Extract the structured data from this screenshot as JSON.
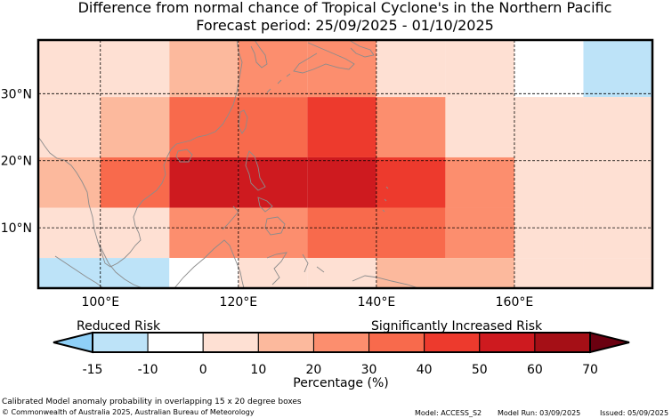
{
  "title": "Difference from normal chance of Tropical Cyclone's in the Northern Pacific",
  "subtitle": "Forecast period: 25/09/2025 - 01/10/2025",
  "map": {
    "lon_range": [
      91,
      180
    ],
    "lat_range": [
      1,
      38
    ],
    "lat_labels": [
      "30°N",
      "20°N",
      "10°N"
    ],
    "lon_labels": [
      "100°E",
      "120°E",
      "140°E",
      "160°E"
    ],
    "lat_ticks": [
      30,
      20,
      10
    ],
    "lon_ticks": [
      100,
      120,
      140,
      160
    ],
    "grid_cells": [
      {
        "lon0": 91,
        "lon1": 100,
        "lat0": 29.5,
        "lat1": 38,
        "pct": 0
      },
      {
        "lon0": 100,
        "lon1": 110,
        "lat0": 29.5,
        "lat1": 38,
        "pct": 5
      },
      {
        "lon0": 110,
        "lon1": 120,
        "lat0": 29.5,
        "lat1": 38,
        "pct": 15
      },
      {
        "lon0": 120,
        "lon1": 130,
        "lat0": 29.5,
        "lat1": 38,
        "pct": 25
      },
      {
        "lon0": 130,
        "lon1": 140,
        "lat0": 29.5,
        "lat1": 38,
        "pct": 25
      },
      {
        "lon0": 140,
        "lon1": 150,
        "lat0": 29.5,
        "lat1": 38,
        "pct": 5
      },
      {
        "lon0": 150,
        "lon1": 160,
        "lat0": 29.5,
        "lat1": 38,
        "pct": 0
      },
      {
        "lon0": 160,
        "lon1": 170,
        "lat0": 29.5,
        "lat1": 38,
        "pct": -5
      },
      {
        "lon0": 170,
        "lon1": 180,
        "lat0": 29.5,
        "lat1": 38,
        "pct": -15
      },
      {
        "lon0": 91,
        "lon1": 100,
        "lat0": 20.5,
        "lat1": 29.5,
        "pct": 5
      },
      {
        "lon0": 100,
        "lon1": 110,
        "lat0": 20.5,
        "lat1": 29.5,
        "pct": 15
      },
      {
        "lon0": 110,
        "lon1": 120,
        "lat0": 20.5,
        "lat1": 29.5,
        "pct": 35
      },
      {
        "lon0": 120,
        "lon1": 130,
        "lat0": 20.5,
        "lat1": 29.5,
        "pct": 35
      },
      {
        "lon0": 130,
        "lon1": 140,
        "lat0": 20.5,
        "lat1": 29.5,
        "pct": 45
      },
      {
        "lon0": 140,
        "lon1": 150,
        "lat0": 20.5,
        "lat1": 29.5,
        "pct": 25
      },
      {
        "lon0": 150,
        "lon1": 160,
        "lat0": 20.5,
        "lat1": 29.5,
        "pct": 5
      },
      {
        "lon0": 160,
        "lon1": 170,
        "lat0": 20.5,
        "lat1": 29.5,
        "pct": 0
      },
      {
        "lon0": 170,
        "lon1": 180,
        "lat0": 20.5,
        "lat1": 29.5,
        "pct": 0
      },
      {
        "lon0": 91,
        "lon1": 100,
        "lat0": 13,
        "lat1": 20.5,
        "pct": 15
      },
      {
        "lon0": 100,
        "lon1": 110,
        "lat0": 13,
        "lat1": 20.5,
        "pct": 35
      },
      {
        "lon0": 110,
        "lon1": 120,
        "lat0": 13,
        "lat1": 20.5,
        "pct": 55
      },
      {
        "lon0": 120,
        "lon1": 130,
        "lat0": 13,
        "lat1": 20.5,
        "pct": 55
      },
      {
        "lon0": 130,
        "lon1": 140,
        "lat0": 13,
        "lat1": 20.5,
        "pct": 55
      },
      {
        "lon0": 140,
        "lon1": 150,
        "lat0": 13,
        "lat1": 20.5,
        "pct": 45
      },
      {
        "lon0": 150,
        "lon1": 160,
        "lat0": 13,
        "lat1": 20.5,
        "pct": 25
      },
      {
        "lon0": 160,
        "lon1": 170,
        "lat0": 13,
        "lat1": 20.5,
        "pct": 5
      },
      {
        "lon0": 170,
        "lon1": 180,
        "lat0": 13,
        "lat1": 20.5,
        "pct": 5
      },
      {
        "lon0": 91,
        "lon1": 100,
        "lat0": 5.5,
        "lat1": 13,
        "pct": 0
      },
      {
        "lon0": 100,
        "lon1": 110,
        "lat0": 5.5,
        "lat1": 13,
        "pct": 5
      },
      {
        "lon0": 110,
        "lon1": 120,
        "lat0": 5.5,
        "lat1": 13,
        "pct": 25
      },
      {
        "lon0": 120,
        "lon1": 130,
        "lat0": 5.5,
        "lat1": 13,
        "pct": 25
      },
      {
        "lon0": 130,
        "lon1": 140,
        "lat0": 5.5,
        "lat1": 13,
        "pct": 35
      },
      {
        "lon0": 140,
        "lon1": 150,
        "lat0": 5.5,
        "lat1": 13,
        "pct": 35
      },
      {
        "lon0": 150,
        "lon1": 160,
        "lat0": 5.5,
        "lat1": 13,
        "pct": 25
      },
      {
        "lon0": 160,
        "lon1": 170,
        "lat0": 5.5,
        "lat1": 13,
        "pct": 5
      },
      {
        "lon0": 170,
        "lon1": 180,
        "lat0": 5.5,
        "lat1": 13,
        "pct": 0
      },
      {
        "lon0": 91,
        "lon1": 110,
        "lat0": 1,
        "lat1": 5.5,
        "pct": -15
      },
      {
        "lon0": 110,
        "lon1": 120,
        "lat0": 1,
        "lat1": 5.5,
        "pct": -5
      },
      {
        "lon0": 120,
        "lon1": 130,
        "lat0": 1,
        "lat1": 5.5,
        "pct": 0
      },
      {
        "lon0": 130,
        "lon1": 140,
        "lat0": 1,
        "lat1": 5.5,
        "pct": 5
      },
      {
        "lon0": 140,
        "lon1": 160,
        "lat0": 1,
        "lat1": 5.5,
        "pct": 15
      },
      {
        "lon0": 160,
        "lon1": 170,
        "lat0": 1,
        "lat1": 5.5,
        "pct": 5
      },
      {
        "lon0": 170,
        "lon1": 180,
        "lat0": 1,
        "lat1": 5.5,
        "pct": 0
      }
    ]
  },
  "legend": {
    "reduced_label": "Reduced Risk",
    "increased_label": "Significantly Increased Risk",
    "axis_label": "Percentage (%)",
    "ticks": [
      "-15",
      "-10",
      "0",
      "10",
      "20",
      "30",
      "40",
      "50",
      "60",
      "70"
    ],
    "bins": [
      {
        "range": "-15 to -10",
        "color": "#bde3f8"
      },
      {
        "range": "-10 to 0",
        "color": "#ffffff"
      },
      {
        "range": "0 to 10",
        "color": "#fee0d3"
      },
      {
        "range": "10 to 20",
        "color": "#fcb99d"
      },
      {
        "range": "20 to 30",
        "color": "#fc8e6e"
      },
      {
        "range": "30 to 40",
        "color": "#f86a4c"
      },
      {
        "range": "40 to 50",
        "color": "#ed3a2d"
      },
      {
        "range": "50 to 60",
        "color": "#ce1a1f"
      },
      {
        "range": "60 to 70",
        "color": "#a50f16"
      }
    ],
    "under_color": "#8fd0f7",
    "over_color": "#6b0010"
  },
  "footer": {
    "note": "Calibrated Model anomaly probability in overlapping 15 x 20 degree boxes",
    "copyright": "© Commonwealth of Australia 2025, Australian Bureau of Meteorology",
    "model": "Model: ACCESS_S2",
    "model_run": "Model Run: 03/09/2025",
    "issued": "Issued: 05/09/2025"
  }
}
